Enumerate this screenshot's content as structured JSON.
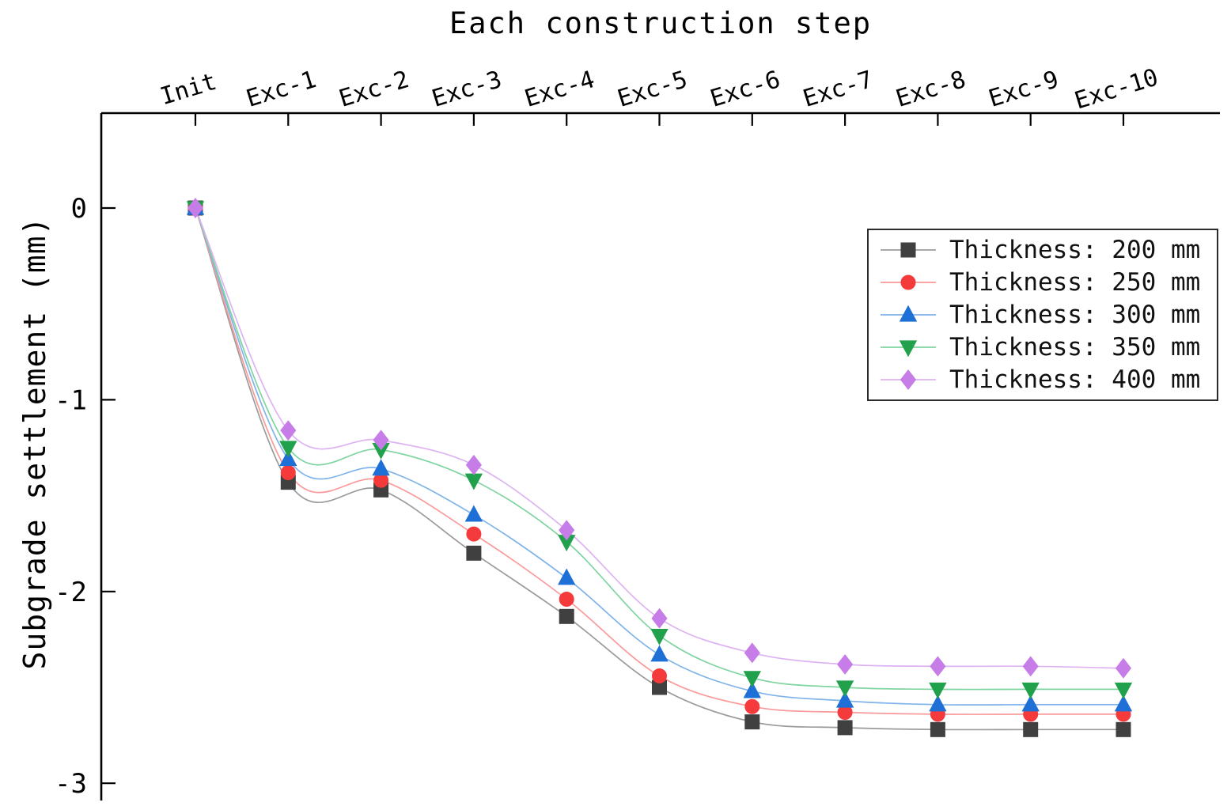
{
  "chart_data": {
    "type": "line",
    "title": "Each construction step",
    "xlabel": "Each construction step",
    "ylabel": "Subgrade settlement (mm)",
    "categories": [
      "Init",
      "Exc-1",
      "Exc-2",
      "Exc-3",
      "Exc-4",
      "Exc-5",
      "Exc-6",
      "Exc-7",
      "Exc-8",
      "Exc-9",
      "Exc-10"
    ],
    "yticks": [
      0,
      -1,
      -2,
      -3
    ],
    "ylim": [
      -3,
      0.5
    ],
    "grid": false,
    "legend_position": "top-right",
    "axis_color": "#000000",
    "series": [
      {
        "label": "Thickness: 200 mm",
        "marker": "square",
        "color": "#404040",
        "line_color": "#9b9b9b",
        "values": [
          0,
          -1.43,
          -1.47,
          -1.8,
          -2.13,
          -2.5,
          -2.68,
          -2.71,
          -2.72,
          -2.72,
          -2.72
        ]
      },
      {
        "label": "Thickness: 250 mm",
        "marker": "circle",
        "color": "#f43a3a",
        "line_color": "#fa9a9a",
        "values": [
          0,
          -1.38,
          -1.42,
          -1.7,
          -2.04,
          -2.44,
          -2.6,
          -2.63,
          -2.64,
          -2.64,
          -2.64
        ]
      },
      {
        "label": "Thickness: 300 mm",
        "marker": "triangle-up",
        "color": "#1e6fd6",
        "line_color": "#7fb3ea",
        "values": [
          0,
          -1.31,
          -1.36,
          -1.6,
          -1.93,
          -2.33,
          -2.52,
          -2.57,
          -2.59,
          -2.59,
          -2.59
        ]
      },
      {
        "label": "Thickness: 350 mm",
        "marker": "triangle-down",
        "color": "#22a14c",
        "line_color": "#7fd4a0",
        "values": [
          0,
          -1.25,
          -1.26,
          -1.42,
          -1.74,
          -2.23,
          -2.45,
          -2.5,
          -2.51,
          -2.51,
          -2.51
        ]
      },
      {
        "label": "Thickness: 400 mm",
        "marker": "diamond",
        "color": "#c77de8",
        "line_color": "#ddb3f2",
        "values": [
          0,
          -1.16,
          -1.21,
          -1.34,
          -1.68,
          -2.14,
          -2.32,
          -2.38,
          -2.39,
          -2.39,
          -2.4
        ]
      }
    ]
  }
}
